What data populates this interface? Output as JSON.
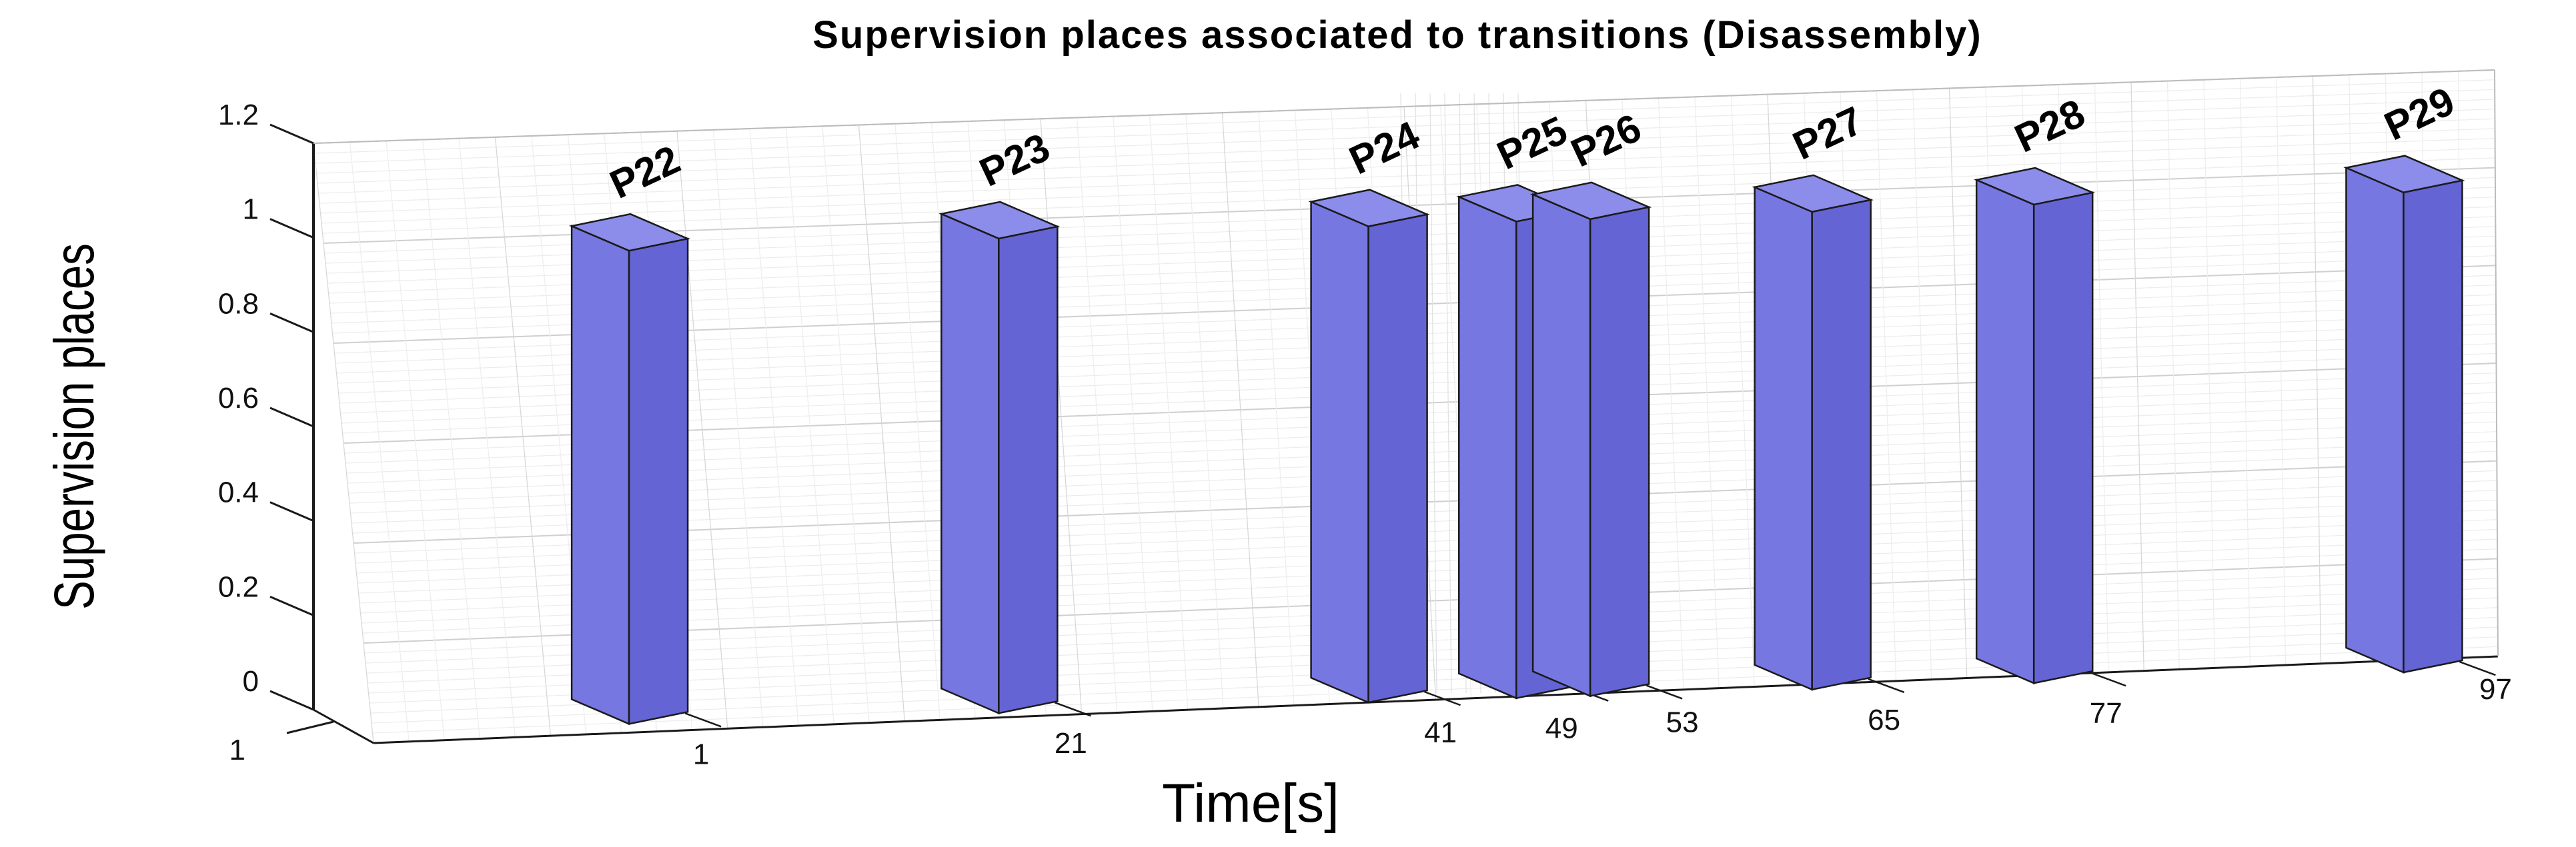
{
  "chart_data": {
    "type": "bar",
    "title": "Supervision places associated to transitions (Disassembly)",
    "xlabel": "Time[s]",
    "ylabel": "Supervision places",
    "ylim": [
      0,
      1.2
    ],
    "y_ticks": [
      "0",
      "0.2",
      "0.4",
      "0.6",
      "0.8",
      "1",
      "1.2"
    ],
    "depth_tick": "1",
    "x_ticks": [
      "1",
      "21",
      "41",
      "49",
      "53",
      "65",
      "77",
      "97"
    ],
    "categories": [
      1,
      21,
      41,
      49,
      53,
      65,
      77,
      97
    ],
    "values": [
      1,
      1,
      1,
      1,
      1,
      1,
      1,
      1
    ],
    "bar_labels": [
      "P22",
      "P23",
      "P24",
      "P25",
      "P26",
      "P27",
      "P28",
      "P29"
    ],
    "grid": true,
    "bar_colors": {
      "front": "#7777e2",
      "side": "#6464d4",
      "top": "#8c8cea",
      "edge": "#1a1a1a"
    }
  }
}
